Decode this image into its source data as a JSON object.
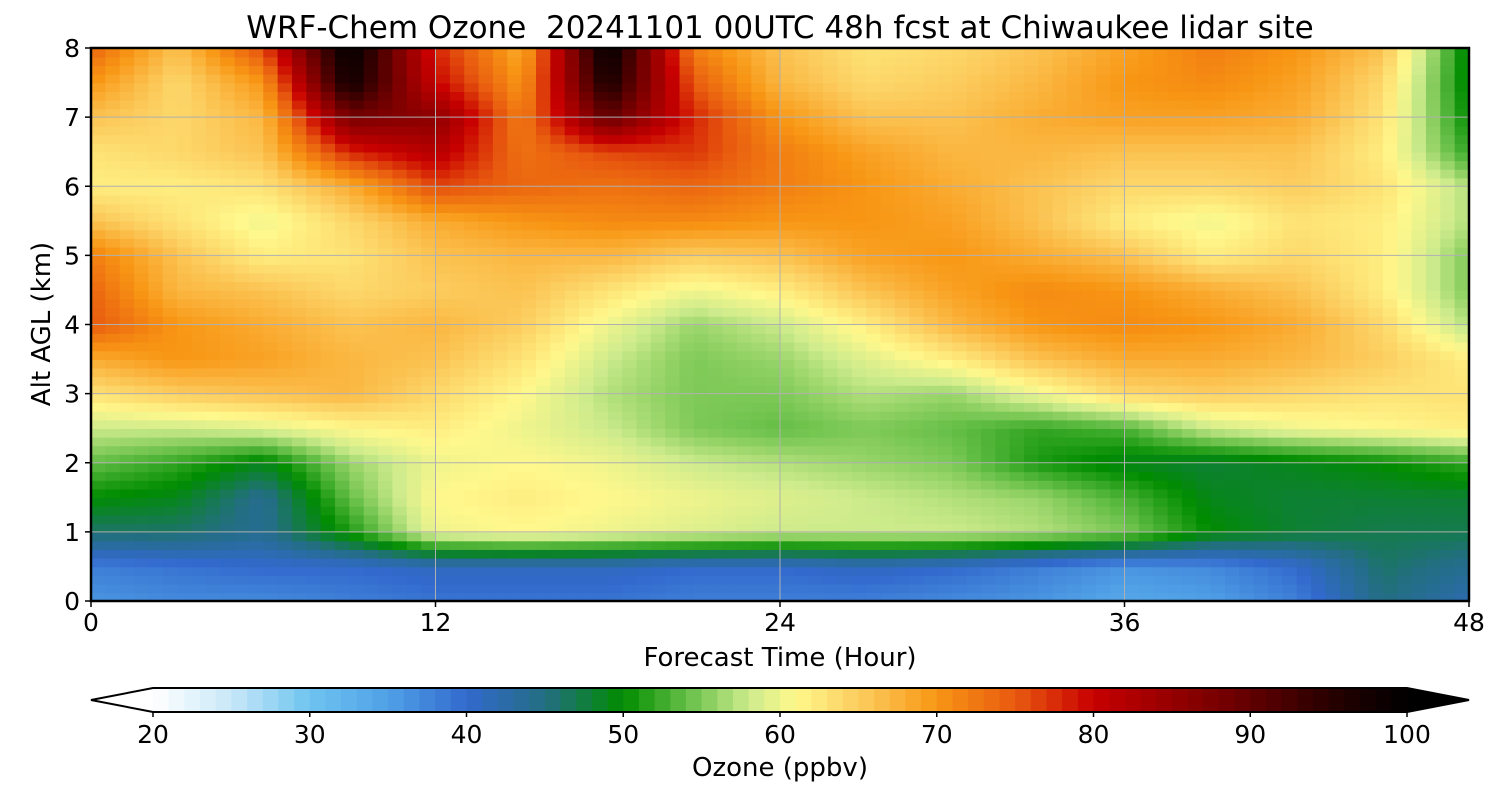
{
  "chart_data": {
    "type": "heatmap",
    "title": "WRF-Chem Ozone  20241101 00UTC 48h fcst at Chiwaukee lidar site",
    "xlabel": "Forecast Time (Hour)",
    "ylabel": "Alt AGL (km)",
    "xlim": [
      0,
      48
    ],
    "ylim": [
      0,
      8
    ],
    "x_ticks": [
      "0",
      "12",
      "24",
      "36",
      "48"
    ],
    "y_ticks": [
      "0",
      "1",
      "2",
      "3",
      "4",
      "5",
      "6",
      "7",
      "8"
    ],
    "grid": true,
    "x": [
      0,
      3,
      6,
      9,
      12,
      15,
      18,
      21,
      24,
      27,
      30,
      33,
      36,
      39,
      42,
      45,
      48
    ],
    "y": [
      0,
      0.5,
      1,
      1.5,
      2,
      2.5,
      3,
      3.5,
      4,
      4.5,
      5,
      5.5,
      6,
      6.5,
      7,
      7.5,
      8
    ],
    "z_units": "ppbv",
    "z": [
      [
        36,
        37,
        37,
        38,
        39,
        39,
        39,
        38,
        38,
        38,
        37,
        36,
        34,
        35,
        38,
        45,
        42
      ],
      [
        38,
        39,
        40,
        40,
        41,
        41,
        41,
        40,
        40,
        41,
        40,
        38,
        36,
        37,
        40,
        46,
        44
      ],
      [
        46,
        46,
        44,
        51,
        60,
        61,
        60,
        59,
        58,
        58,
        58,
        57,
        55,
        50,
        48,
        47,
        47
      ],
      [
        50,
        49,
        44,
        54,
        61,
        62,
        61,
        60,
        59,
        58,
        57,
        56,
        53,
        49,
        48,
        48,
        48
      ],
      [
        54,
        52,
        49,
        56,
        60,
        61,
        60,
        58,
        57,
        56,
        55,
        51,
        49,
        48,
        49,
        50,
        52
      ],
      [
        58,
        58,
        59,
        61,
        62,
        60,
        58,
        55,
        54,
        55,
        54,
        52,
        53,
        58,
        60,
        61,
        62
      ],
      [
        63,
        65,
        66,
        67,
        64,
        61,
        57,
        55,
        55,
        57,
        56,
        60,
        64,
        65,
        64,
        63,
        63
      ],
      [
        68,
        70,
        69,
        67,
        66,
        63,
        58,
        55,
        56,
        59,
        62,
        66,
        68,
        68,
        67,
        65,
        62
      ],
      [
        75,
        70,
        68,
        66,
        67,
        65,
        60,
        56,
        58,
        62,
        67,
        70,
        71,
        70,
        68,
        64,
        57
      ],
      [
        74,
        67,
        66,
        64,
        65,
        66,
        63,
        60,
        62,
        66,
        69,
        71,
        70,
        68,
        66,
        62,
        55
      ],
      [
        72,
        66,
        62,
        63,
        66,
        67,
        67,
        65,
        66,
        69,
        70,
        68,
        66,
        62,
        64,
        62,
        55
      ],
      [
        66,
        63,
        60,
        64,
        68,
        70,
        71,
        71,
        70,
        70,
        69,
        66,
        62,
        60,
        63,
        62,
        57
      ],
      [
        62,
        62,
        63,
        68,
        76,
        74,
        73,
        74,
        72,
        70,
        68,
        66,
        64,
        64,
        65,
        63,
        57
      ],
      [
        63,
        64,
        66,
        78,
        82,
        73,
        76,
        77,
        72,
        69,
        67,
        67,
        66,
        66,
        66,
        62,
        52
      ],
      [
        66,
        64,
        67,
        88,
        86,
        72,
        90,
        78,
        70,
        66,
        66,
        68,
        69,
        69,
        68,
        63,
        50
      ],
      [
        70,
        64,
        70,
        98,
        80,
        70,
        97,
        75,
        67,
        64,
        65,
        67,
        70,
        71,
        69,
        64,
        49
      ],
      [
        74,
        66,
        76,
        100,
        78,
        68,
        100,
        72,
        66,
        63,
        64,
        66,
        69,
        72,
        70,
        66,
        49
      ]
    ],
    "colorbar": {
      "label": "Ozone  (ppbv)",
      "min": 20,
      "max": 100,
      "ticks": [
        "20",
        "30",
        "40",
        "50",
        "60",
        "70",
        "80",
        "90",
        "100"
      ],
      "extend": "both"
    }
  }
}
